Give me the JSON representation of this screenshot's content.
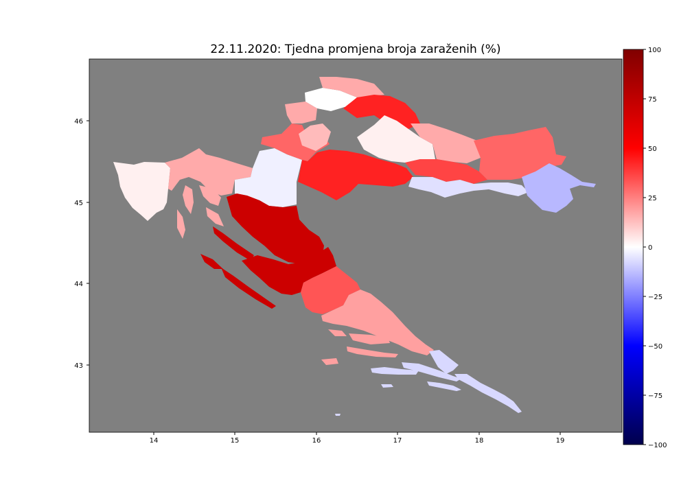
{
  "figure": {
    "title": "22.11.2020: Tjedna promjena broja zaraženih (%)",
    "background_color": "#808080"
  },
  "chart_data": {
    "type": "heatmap",
    "subtype": "choropleth-map",
    "title": "22.11.2020: Tjedna promjena broja zaraženih (%)",
    "x_axis": {
      "label": "",
      "ticks": [
        14,
        15,
        16,
        17,
        18,
        19
      ],
      "range": [
        13.2,
        19.75
      ]
    },
    "y_axis": {
      "label": "",
      "ticks": [
        43,
        44,
        45,
        46
      ],
      "range": [
        42.2,
        46.75
      ]
    },
    "colorbar": {
      "colormap": "seismic",
      "range": [
        -100,
        100
      ],
      "ticks": [
        -100,
        -75,
        -50,
        -25,
        0,
        25,
        50,
        75,
        100
      ]
    },
    "grid": false,
    "legend": "colorbar right"
  }
}
